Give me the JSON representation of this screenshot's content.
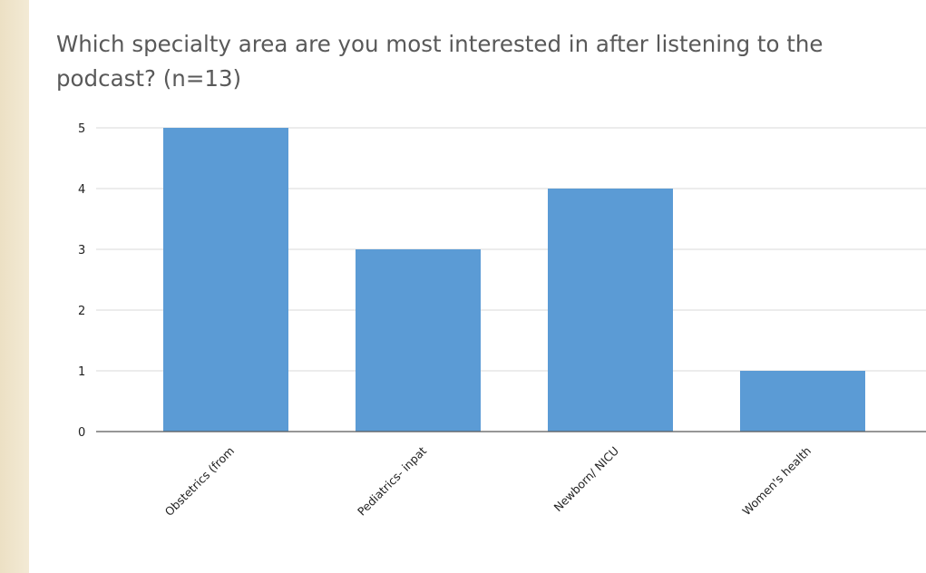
{
  "chart_data": {
    "type": "bar",
    "title": "Which specialty area are you most interested in after listening to the podcast? (n=13)",
    "categories": [
      "Obstetrics (from",
      "Pediatrics- inpat",
      "Newborn/ NICU",
      "Women's health"
    ],
    "values": [
      5,
      3,
      4,
      1
    ],
    "yticks": [
      0,
      1,
      2,
      3,
      4,
      5
    ],
    "ylim": [
      0,
      5
    ],
    "xlabel": "",
    "ylabel": "",
    "grid": true,
    "legend": "none",
    "colors": {
      "bar": "#5b9bd5",
      "grid": "#d9d9d9",
      "axis": "#595959",
      "side_band": "#f0e6cf"
    }
  }
}
